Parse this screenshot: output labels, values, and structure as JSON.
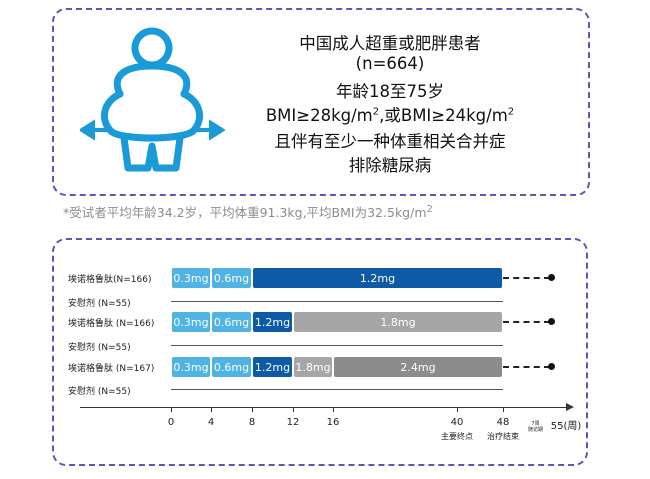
{
  "info": {
    "line1": "中国成人超重或肥胖患者",
    "line2": "(n=664)",
    "line3": "年龄18至75岁",
    "line4_a": "BMI≥28kg/m",
    "line4_sup1": "2",
    "line4_b": ",或BMI≥24kg/m",
    "line4_sup2": "2",
    "line5": "且伴有至少一种体重相关合并症",
    "line6": "排除糖尿病"
  },
  "footnote": {
    "text": "*受试者平均年龄34.2岁，平均体重91.3kg,平均BMI为32.5kg/m",
    "sup": "2"
  },
  "icon": "obese-person-icon",
  "colors": {
    "icon": "#1a9ad6",
    "frame": "#6a4fb5",
    "light_blue": "#4fb3e4",
    "dark_blue": "#0d5aa7",
    "gray": "#a6a6a6",
    "dark_gray": "#8c8c8c"
  },
  "chart_data": {
    "type": "gantt",
    "x_unit": "(周)",
    "ticks": [
      0,
      4,
      8,
      12,
      16,
      40,
      48,
      55
    ],
    "tick_labels": [
      "0",
      "4",
      "8",
      "12",
      "16",
      "40",
      "48",
      "55(周)"
    ],
    "milestones": [
      {
        "week": 40,
        "label": "主要终点"
      },
      {
        "week": 48,
        "label": "治疗结束"
      }
    ],
    "followup_label": [
      "7周",
      "随访期"
    ],
    "rows": [
      {
        "label": "埃诺格鲁肽(N=166)",
        "segments": [
          {
            "start": 0,
            "end": 4,
            "dose": "0.3mg",
            "color": "light_blue"
          },
          {
            "start": 4,
            "end": 8,
            "dose": "0.6mg",
            "color": "light_blue"
          },
          {
            "start": 8,
            "end": 48,
            "dose": "1.2mg",
            "color": "dark_blue"
          }
        ],
        "followup": true
      },
      {
        "label": "安慰剂 (N=55)",
        "segments": [],
        "followup": false
      },
      {
        "label": "埃诺格鲁肽 (N=166)",
        "segments": [
          {
            "start": 0,
            "end": 4,
            "dose": "0.3mg",
            "color": "light_blue"
          },
          {
            "start": 4,
            "end": 8,
            "dose": "0.6mg",
            "color": "light_blue"
          },
          {
            "start": 8,
            "end": 12,
            "dose": "1.2mg",
            "color": "dark_blue"
          },
          {
            "start": 12,
            "end": 48,
            "dose": "1.8mg",
            "color": "gray"
          }
        ],
        "followup": true
      },
      {
        "label": "安慰剂 (N=55)",
        "segments": [],
        "followup": false
      },
      {
        "label": "埃诺格鲁肽 (N=167)",
        "segments": [
          {
            "start": 0,
            "end": 4,
            "dose": "0.3mg",
            "color": "light_blue"
          },
          {
            "start": 4,
            "end": 8,
            "dose": "0.6mg",
            "color": "light_blue"
          },
          {
            "start": 8,
            "end": 12,
            "dose": "1.2mg",
            "color": "dark_blue"
          },
          {
            "start": 12,
            "end": 16,
            "dose": "1.8mg",
            "color": "gray"
          },
          {
            "start": 16,
            "end": 48,
            "dose": "2.4mg",
            "color": "dark_gray"
          }
        ],
        "followup": true
      },
      {
        "label": "安慰剂 (N=55)",
        "segments": [],
        "followup": false
      }
    ]
  }
}
